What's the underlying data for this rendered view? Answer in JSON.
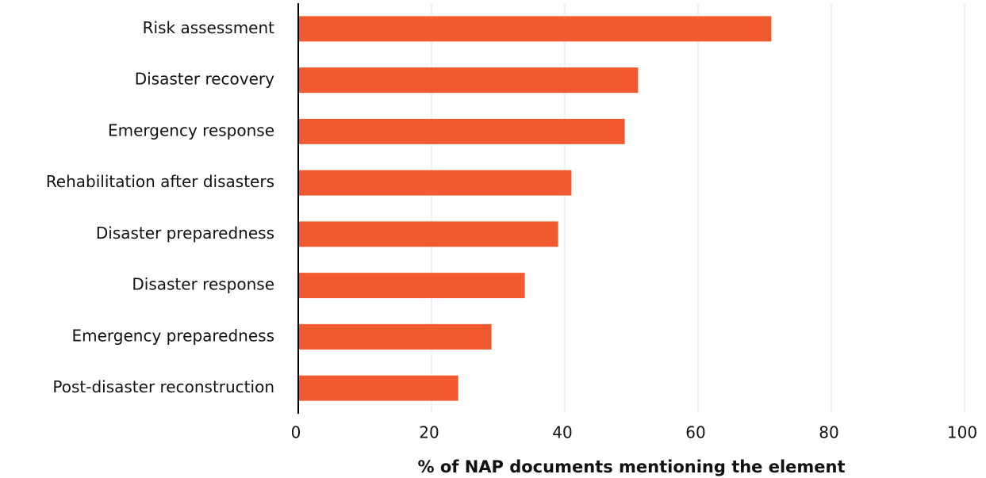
{
  "chart_data": {
    "type": "hbar",
    "categories": [
      "Risk assessment",
      "Disaster recovery",
      "Emergency response",
      "Rehabilitation after disasters",
      "Disaster preparedness",
      "Disaster response",
      "Emergency preparedness",
      "Post-disaster reconstruction"
    ],
    "values": [
      71,
      51,
      49,
      41,
      39,
      34,
      29,
      24
    ],
    "color": "#f15a2f",
    "xlabel": "% of NAP documents mentioning the element",
    "xlim": [
      0,
      100
    ],
    "xticks": [
      0,
      20,
      40,
      60,
      80,
      100
    ],
    "grid": true
  }
}
